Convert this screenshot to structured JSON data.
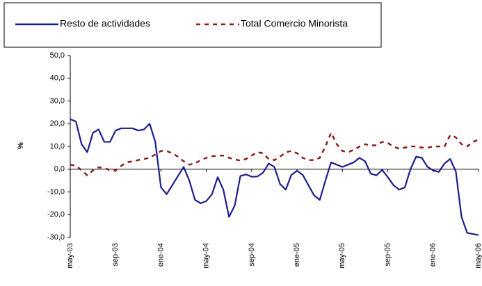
{
  "chart_data": {
    "type": "line",
    "ylabel": "%",
    "categories": [
      "may-03",
      null,
      null,
      null,
      null,
      null,
      null,
      null,
      "sep-03",
      null,
      null,
      null,
      null,
      null,
      null,
      null,
      "ene-04",
      null,
      null,
      null,
      null,
      null,
      null,
      null,
      "may-04",
      null,
      null,
      null,
      null,
      null,
      null,
      null,
      "sep-04",
      null,
      null,
      null,
      null,
      null,
      null,
      null,
      "ene-05",
      null,
      null,
      null,
      null,
      null,
      null,
      null,
      "may-05",
      null,
      null,
      null,
      null,
      null,
      null,
      null,
      "sep-05",
      null,
      null,
      null,
      null,
      null,
      null,
      null,
      "ene-06",
      null,
      null,
      null,
      null,
      null,
      null,
      null,
      "may-06"
    ],
    "series": [
      {
        "name": "Resto de actividades",
        "color": "#1c1c8c",
        "dashed": false,
        "values": [
          22,
          21,
          11,
          7.5,
          16,
          17.5,
          12,
          12,
          17,
          18,
          18,
          18,
          17,
          17.5,
          20,
          12,
          -8,
          -11,
          -7,
          -3,
          1,
          -5,
          -13.5,
          -15,
          -14,
          -11,
          -3.5,
          -9,
          -21,
          -16,
          -3,
          -2.3,
          -3.3,
          -3.2,
          -1.5,
          2.5,
          1,
          -6.5,
          -9,
          -2.5,
          -0.7,
          -2.5,
          -7,
          -11.5,
          -13.5,
          -5,
          3,
          2,
          1,
          2,
          3,
          5,
          3.5,
          -2,
          -2.7,
          -0.3,
          -3.5,
          -7,
          -9,
          -8,
          0,
          5.5,
          5,
          1,
          -0.5,
          -1.2,
          2.5,
          4.5,
          -1,
          -21,
          -28,
          -28.5,
          -29
        ]
      },
      {
        "name": "Total Comercio Minorista",
        "color": "#8b1a1a",
        "dashed": true,
        "values": [
          2,
          1.5,
          -0.5,
          -2.7,
          -0.5,
          0.8,
          0.6,
          -0.5,
          -0.5,
          1.5,
          3,
          3.5,
          4,
          4.5,
          5,
          6.5,
          8,
          8,
          7,
          5.5,
          3.5,
          2,
          2.5,
          4,
          5,
          5.7,
          6,
          6,
          5,
          4.3,
          3.8,
          4.5,
          6,
          7.5,
          7,
          4.5,
          4,
          5.5,
          7.5,
          8,
          7,
          5,
          4,
          4,
          5,
          10,
          16,
          11,
          8,
          7.5,
          8.5,
          10,
          11,
          10.5,
          10.5,
          12,
          11.5,
          10,
          9,
          9.5,
          10,
          10,
          9.5,
          9.5,
          10,
          10,
          10,
          15,
          14,
          11,
          10,
          12,
          13
        ]
      }
    ],
    "ylim": [
      -30,
      50
    ],
    "yticks": [
      {
        "value": -30,
        "label": "-30,0"
      },
      {
        "value": -20,
        "label": "-20,0"
      },
      {
        "value": -10,
        "label": "-10,0"
      },
      {
        "value": 0,
        "label": "0,0"
      },
      {
        "value": 10,
        "label": "10,0"
      },
      {
        "value": 20,
        "label": "20,0"
      },
      {
        "value": 30,
        "label": "30,0"
      },
      {
        "value": 40,
        "label": "40,0"
      },
      {
        "value": 50,
        "label": "50,0"
      }
    ],
    "grid": false,
    "legend": "top"
  }
}
